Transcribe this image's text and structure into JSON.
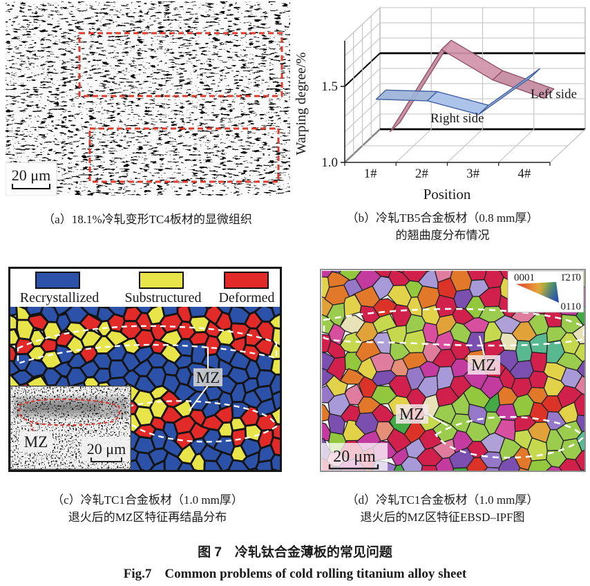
{
  "figure": {
    "caption_zh": "图 7　冷轧钛合金薄板的常见问题",
    "caption_en": "Fig.7　Common problems of cold rolling titanium alloy sheet"
  },
  "panel_a": {
    "caption": "（a）18.1%冷轧变形TC4板材的显微组织",
    "scale_bar_label": "20 μm",
    "highlight_color": "#df3b2d"
  },
  "panel_b": {
    "caption_line1": "（b）冷轧TB5合金板材（0.8 mm厚）",
    "caption_line2": "的翘曲度分布情况"
  },
  "panel_c": {
    "caption_line1": "（c）冷轧TC1合金板材（1.0 mm厚）",
    "caption_line2": "退火后的MZ区特征再结晶分布",
    "legend": [
      {
        "label": "Recrystallized",
        "color": "#2b52a8"
      },
      {
        "label": "Substructured",
        "color": "#e8e54a"
      },
      {
        "label": "Deformed",
        "color": "#e22a28"
      }
    ],
    "boundary_color": "#141414",
    "mz_label": "MZ",
    "inset": {
      "mz_label": "MZ",
      "scale_bar_label": "20 μm",
      "outline_color": "#d4372e"
    }
  },
  "panel_d": {
    "caption_line1": "（d）冷轧TC1合金板材（1.0 mm厚）",
    "caption_line2": "退火后的MZ区特征EBSD–IPF图",
    "mz_label": "MZ",
    "scale_bar_label": "20 μm",
    "ipf_legend": {
      "top_left": "0001",
      "top_right": "1̄21̄0",
      "bottom_right": "0110"
    },
    "boundary_color": "#232323",
    "palette": [
      [
        "#d2204c",
        6
      ],
      [
        "#db3328",
        3
      ],
      [
        "#c33b9e",
        2
      ],
      [
        "#7b4fb0",
        2
      ],
      [
        "#9579c8",
        1
      ],
      [
        "#e2782a",
        3
      ],
      [
        "#93c83e",
        2
      ],
      [
        "#44a844",
        1
      ],
      [
        "#e2d24a",
        2
      ],
      [
        "#e58f78",
        1
      ],
      [
        "#e07d9e",
        1
      ],
      [
        "#a89ad8",
        1
      ]
    ],
    "band_palette": [
      [
        "#9ccc4e",
        3
      ],
      [
        "#c6d84e",
        2
      ],
      [
        "#e8e2b8",
        1
      ],
      [
        "#58b890",
        1
      ],
      [
        "#b0a0d8",
        1
      ],
      [
        "#e2a23a",
        1
      ],
      [
        "#d84fa0",
        1
      ]
    ]
  },
  "chart_data": {
    "type": "line",
    "variant": "3d-ribbon",
    "categories": [
      "1#",
      "2#",
      "3#",
      "4#"
    ],
    "series": [
      {
        "name": "Left side",
        "color": "#c58ba0",
        "edge": "#8f5368",
        "values": [
          1.08,
          1.62,
          1.42,
          1.3
        ]
      },
      {
        "name": "Right side",
        "color": "#9db3d9",
        "edge": "#3f5fa0",
        "values": [
          1.38,
          1.37,
          1.28,
          1.52
        ]
      }
    ],
    "xlabel": "Position",
    "ylabel": "Warping degree/%",
    "ylim": [
      1.0,
      1.8
    ],
    "yticks": [
      1.0,
      1.5
    ],
    "minor_grid_step": 0.1,
    "emphasized_gridlines": [
      1.0,
      1.5
    ],
    "grid": true,
    "legend_position": "inline-right"
  }
}
